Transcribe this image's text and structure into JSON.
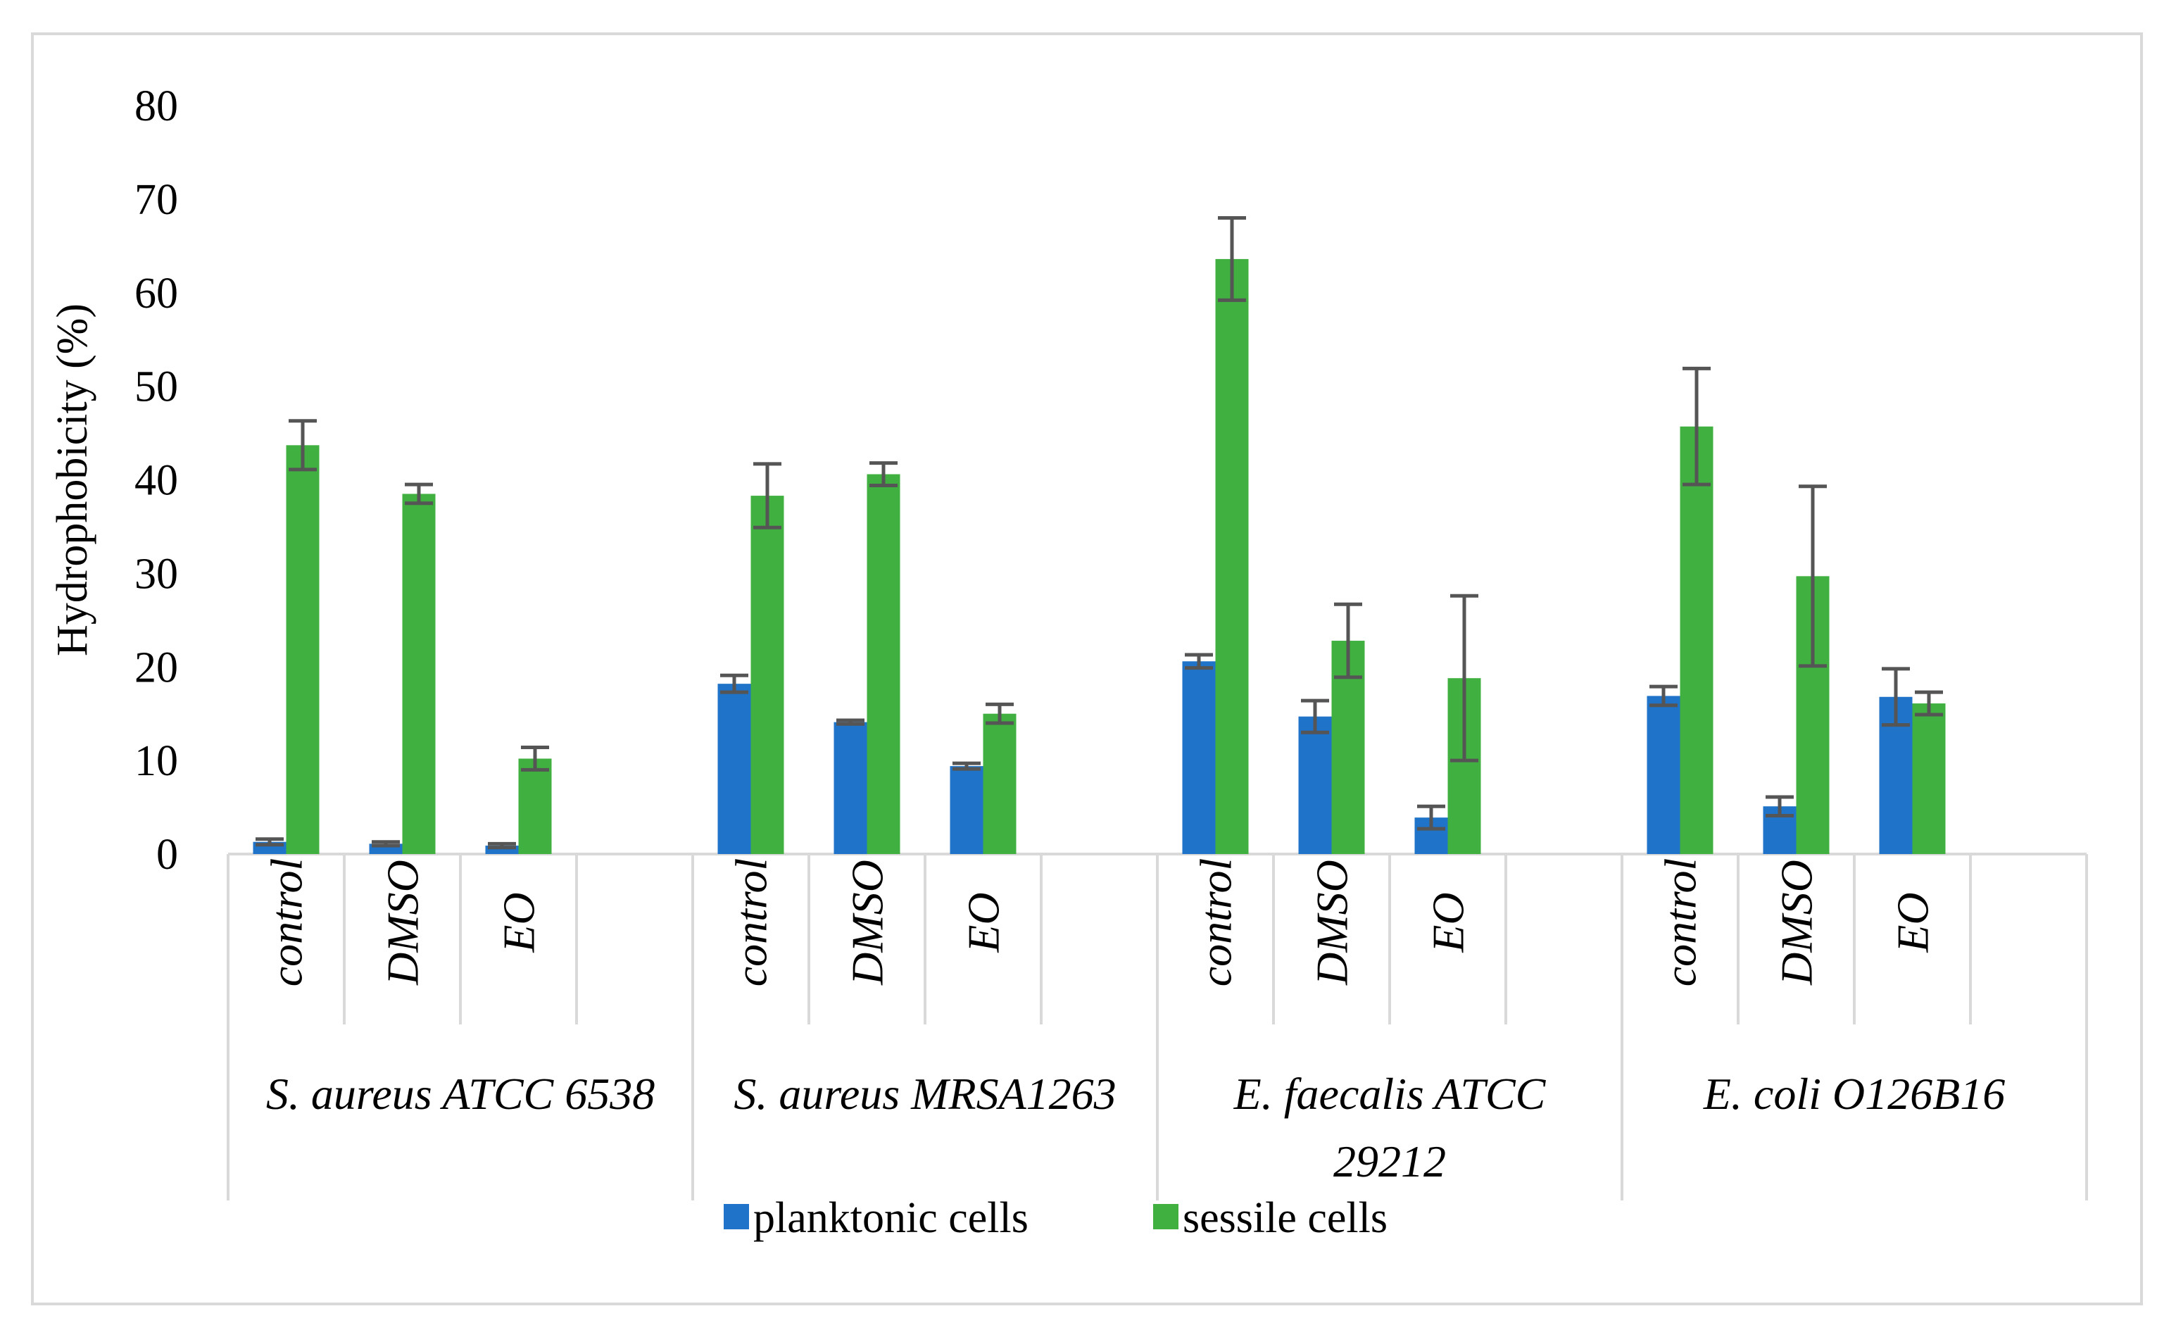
{
  "chart_data": {
    "type": "bar",
    "ylabel": "Hydrophobicity (%)",
    "ylim": [
      0,
      80
    ],
    "yticks": [
      "0",
      "10",
      "20",
      "30",
      "40",
      "50",
      "60",
      "70",
      "80"
    ],
    "groups": [
      {
        "label_lines": [
          "S. aureus ATCC 6538"
        ],
        "categories": [
          "control",
          "DMSO",
          "EO"
        ]
      },
      {
        "label_lines": [
          "S. aureus MRSA1263"
        ],
        "categories": [
          "control",
          "DMSO",
          "EO"
        ]
      },
      {
        "label_lines": [
          "E. faecalis ATCC",
          "29212"
        ],
        "categories": [
          "control",
          "DMSO",
          "EO"
        ]
      },
      {
        "label_lines": [
          "E. coli O126B16"
        ],
        "categories": [
          "control",
          "DMSO",
          "EO"
        ]
      }
    ],
    "series": [
      {
        "name": "planktonic cells",
        "color": "#1f73c8",
        "values": [
          1.3,
          1.1,
          0.9,
          18.2,
          14.1,
          9.4,
          20.6,
          14.7,
          3.9,
          16.9,
          5.1,
          16.8
        ],
        "errors": [
          0.3,
          0.2,
          0.2,
          0.9,
          0.2,
          0.3,
          0.7,
          1.7,
          1.2,
          1.0,
          1.0,
          3.0
        ]
      },
      {
        "name": "sessile cells",
        "color": "#40b040",
        "values": [
          43.7,
          38.5,
          10.2,
          38.3,
          40.6,
          15.0,
          63.6,
          22.8,
          18.8,
          45.7,
          29.7,
          16.1
        ],
        "errors": [
          2.6,
          1.0,
          1.2,
          3.4,
          1.2,
          1.0,
          4.4,
          3.9,
          8.8,
          6.2,
          9.6,
          1.2
        ]
      }
    ],
    "legend_position": "bottom",
    "grid": false
  }
}
